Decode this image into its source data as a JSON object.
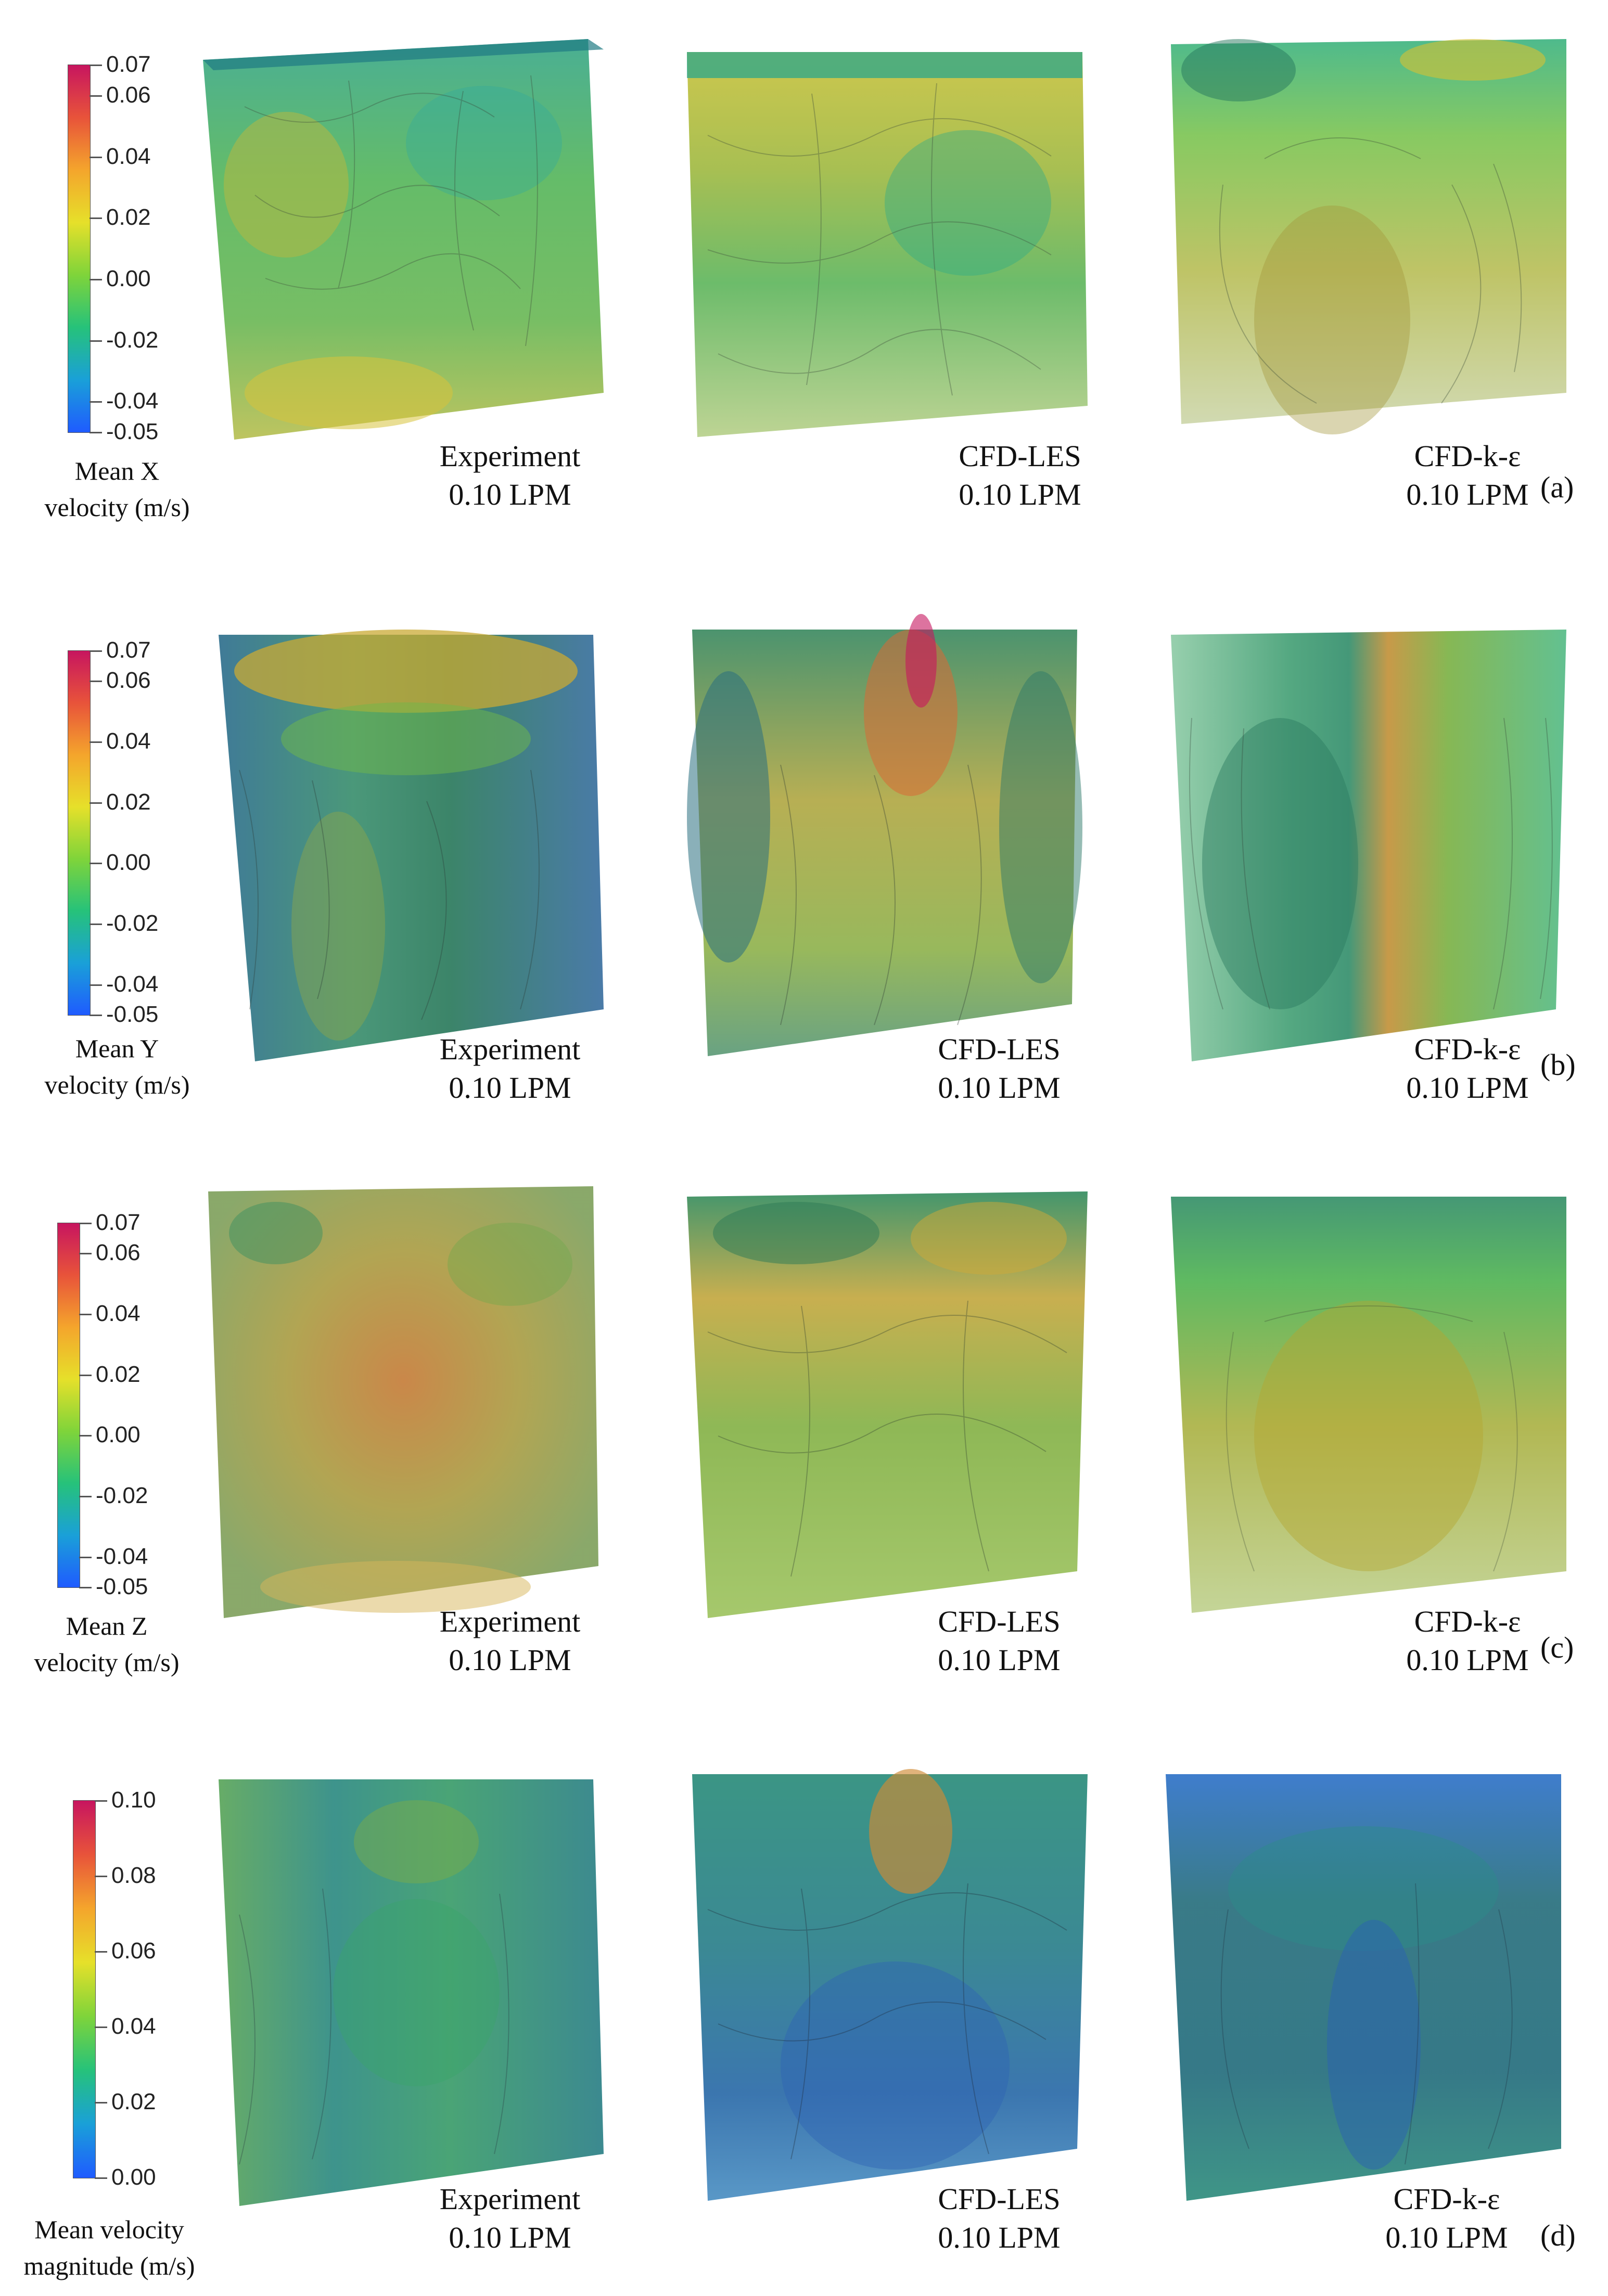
{
  "panels": [
    {
      "id": "a",
      "label": "(a)",
      "colorbar": {
        "title_line1": "Mean  X",
        "title_line2": "velocity (m/s)",
        "ticks": [
          "0.07",
          "0.06",
          "0.04",
          "0.02",
          "0.00",
          "-0.02",
          "-0.04",
          "-0.05"
        ],
        "range": [
          -0.05,
          0.07
        ]
      },
      "views": [
        {
          "name": "Experiment",
          "flow": "0.10 LPM"
        },
        {
          "name": "CFD-LES",
          "flow": "0.10 LPM"
        },
        {
          "name": "CFD-k-ε",
          "flow": "0.10 LPM"
        }
      ]
    },
    {
      "id": "b",
      "label": "(b)",
      "colorbar": {
        "title_line1": "Mean Y",
        "title_line2": "velocity (m/s)",
        "ticks": [
          "0.07",
          "0.06",
          "0.04",
          "0.02",
          "0.00",
          "-0.02",
          "-0.04",
          "-0.05"
        ],
        "range": [
          -0.05,
          0.07
        ]
      },
      "views": [
        {
          "name": "Experiment",
          "flow": "0.10 LPM"
        },
        {
          "name": "CFD-LES",
          "flow": "0.10 LPM"
        },
        {
          "name": "CFD-k-ε",
          "flow": "0.10 LPM"
        }
      ]
    },
    {
      "id": "c",
      "label": "(c)",
      "colorbar": {
        "title_line1": "Mean Z",
        "title_line2": "velocity (m/s)",
        "ticks": [
          "0.07",
          "0.06",
          "0.04",
          "0.02",
          "0.00",
          "-0.02",
          "-0.04",
          "-0.05"
        ],
        "range": [
          -0.05,
          0.07
        ]
      },
      "views": [
        {
          "name": "Experiment",
          "flow": "0.10 LPM"
        },
        {
          "name": "CFD-LES",
          "flow": "0.10 LPM"
        },
        {
          "name": "CFD-k-ε",
          "flow": "0.10 LPM"
        }
      ]
    },
    {
      "id": "d",
      "label": "(d)",
      "colorbar": {
        "title_line1": "Mean velocity",
        "title_line2": "magnitude (m/s)",
        "ticks": [
          "0.10",
          "0.08",
          "0.06",
          "0.04",
          "0.02",
          "0.00"
        ],
        "range": [
          0.0,
          0.1
        ]
      },
      "views": [
        {
          "name": "Experiment",
          "flow": "0.10 LPM"
        },
        {
          "name": "CFD-LES",
          "flow": "0.10 LPM"
        },
        {
          "name": "CFD-k-ε",
          "flow": "0.10 LPM"
        }
      ]
    }
  ],
  "colormap": [
    "#1f5bff",
    "#1aa0d8",
    "#26c27a",
    "#7fd43a",
    "#e6e02a",
    "#f4a52c",
    "#e8533a",
    "#c7155f"
  ]
}
